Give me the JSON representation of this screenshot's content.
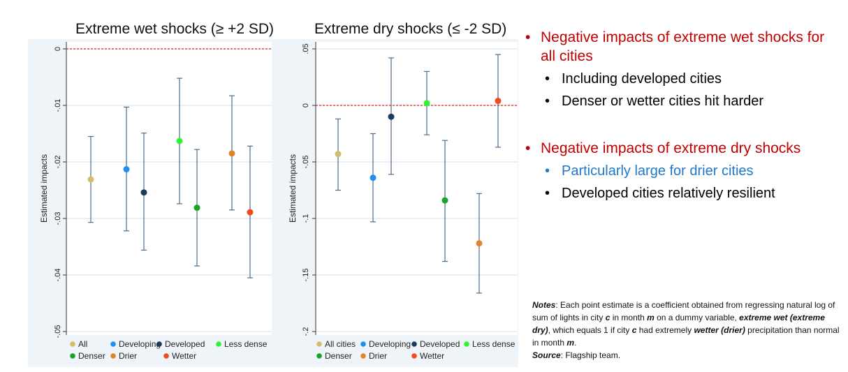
{
  "colors": {
    "All": "#d4bd6a",
    "All cities": "#d4bd6a",
    "Developing": "#1f8ff0",
    "Developed": "#1b3b5c",
    "Less dense": "#33f233",
    "Denser": "#1aa32a",
    "Drier": "#e0852e",
    "Wetter": "#f5491f",
    "red_text": "#c00000",
    "blue_text": "#1f78c8",
    "whisker": "#4a6d8c",
    "zero_line": "#e02020"
  },
  "chart_data": [
    {
      "type": "scatter",
      "title": "Extreme wet shocks (≥ +2 SD)",
      "xlabel": "",
      "ylabel": "Estimated impacts",
      "ylim": [
        -0.05,
        0
      ],
      "yticks": [
        "0",
        "-.01",
        "-.02",
        "-.03",
        "-.04",
        "-.05"
      ],
      "ytick_values": [
        0,
        -0.01,
        -0.02,
        -0.03,
        -0.04,
        -0.05
      ],
      "reference_line": 0,
      "series": [
        {
          "name": "All",
          "value": -0.0231,
          "ci": [
            -0.0307,
            -0.0155
          ]
        },
        {
          "name": "Developing",
          "value": -0.0213,
          "ci": [
            -0.0322,
            -0.0103
          ]
        },
        {
          "name": "Developed",
          "value": -0.0254,
          "ci": [
            -0.0356,
            -0.0149
          ]
        },
        {
          "name": "Less dense",
          "value": -0.0163,
          "ci": [
            -0.0274,
            -0.0052
          ]
        },
        {
          "name": "Denser",
          "value": -0.0281,
          "ci": [
            -0.0384,
            -0.0178
          ]
        },
        {
          "name": "Drier",
          "value": -0.0185,
          "ci": [
            -0.0285,
            -0.0083
          ]
        },
        {
          "name": "Wetter",
          "value": -0.0289,
          "ci": [
            -0.0405,
            -0.0172
          ]
        }
      ],
      "legend": [
        [
          "All",
          "Developing",
          "Developed",
          "Less dense"
        ],
        [
          "Denser",
          "Drier",
          "Wetter"
        ]
      ]
    },
    {
      "type": "scatter",
      "title": "Extreme dry shocks (≤ -2 SD)",
      "xlabel": "",
      "ylabel": "Estimated impacts",
      "ylim": [
        -0.2,
        0.05
      ],
      "yticks": [
        ".05",
        "0",
        "-.05",
        "-.1",
        "-.15",
        "-.2"
      ],
      "ytick_values": [
        0.05,
        0,
        -0.05,
        -0.1,
        -0.15,
        -0.2
      ],
      "reference_line": 0,
      "series": [
        {
          "name": "All cities",
          "value": -0.043,
          "ci": [
            -0.075,
            -0.012
          ]
        },
        {
          "name": "Developing",
          "value": -0.064,
          "ci": [
            -0.103,
            -0.025
          ]
        },
        {
          "name": "Developed",
          "value": -0.01,
          "ci": [
            -0.061,
            0.042
          ]
        },
        {
          "name": "Less dense",
          "value": 0.002,
          "ci": [
            -0.026,
            0.03
          ]
        },
        {
          "name": "Denser",
          "value": -0.084,
          "ci": [
            -0.138,
            -0.031
          ]
        },
        {
          "name": "Drier",
          "value": -0.122,
          "ci": [
            -0.166,
            -0.078
          ]
        },
        {
          "name": "Wetter",
          "value": 0.004,
          "ci": [
            -0.037,
            0.045
          ]
        }
      ],
      "legend": [
        [
          "All cities",
          "Developing",
          "Developed",
          "Less dense"
        ],
        [
          "Denser",
          "Drier",
          "Wetter"
        ]
      ]
    }
  ],
  "bullets": {
    "wet_heading": "Negative impacts of extreme wet shocks for all cities",
    "wet_sub1": "Including developed cities",
    "wet_sub2": "Denser or wetter cities hit harder",
    "dry_heading": "Negative impacts of extreme dry shocks",
    "dry_sub1": "Particularly large for drier cities",
    "dry_sub2": "Developed cities relatively resilient",
    "bullet_char": "•"
  },
  "notes": {
    "notes_label": "Notes",
    "text1": ": Each point estimate is a coefficient obtained from regressing natural log of sum of lights in city ",
    "c1": "c",
    "text2": " in month ",
    "m1": "m",
    "text3": " on a dummy variable, ",
    "extreme": "extreme wet (extreme dry)",
    "text4": ", which equals 1 if city ",
    "c2": "c",
    "text5": " had extremely ",
    "wetter": "wetter (drier)",
    "text6": " precipitation than normal in month ",
    "m2": "m",
    "text7": ".",
    "source_label": "Source",
    "source_text": ": Flagship team."
  }
}
